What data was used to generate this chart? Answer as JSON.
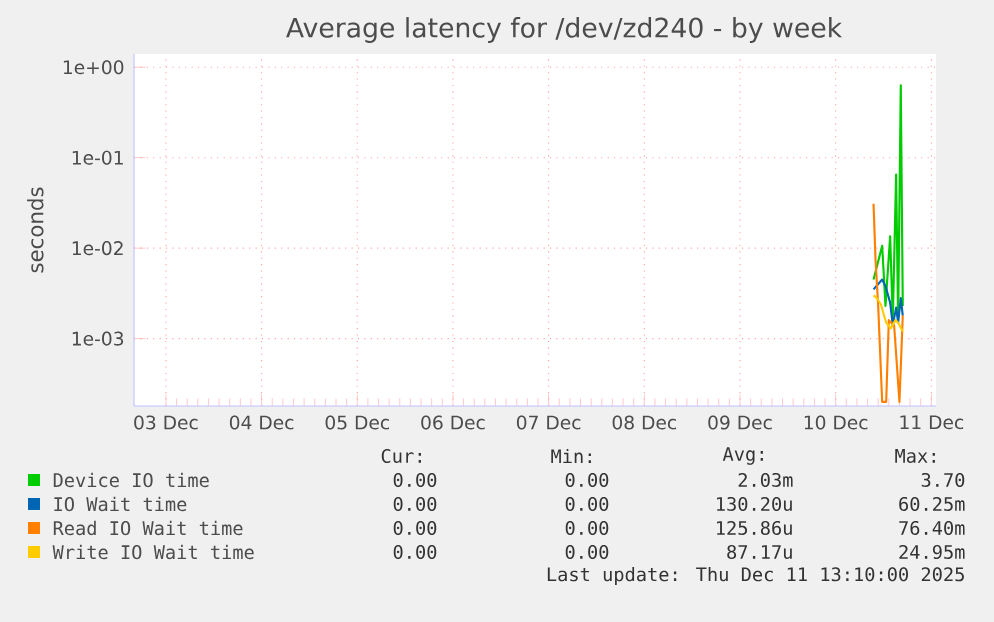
{
  "chart_data": {
    "type": "line",
    "title": "Average latency for /dev/zd240 - by week",
    "ylabel": "seconds",
    "log": "y",
    "grid": true,
    "legend": "bottom",
    "xlim": [
      "2025-12-03T04:00",
      "2025-12-11T13:10"
    ],
    "xticks": [
      {
        "value": "2025-12-03T12:00",
        "label": "03 Dec"
      },
      {
        "value": "2025-12-04T12:00",
        "label": "04 Dec"
      },
      {
        "value": "2025-12-05T12:00",
        "label": "05 Dec"
      },
      {
        "value": "2025-12-06T12:00",
        "label": "06 Dec"
      },
      {
        "value": "2025-12-07T12:00",
        "label": "07 Dec"
      },
      {
        "value": "2025-12-08T12:00",
        "label": "08 Dec"
      },
      {
        "value": "2025-12-09T12:00",
        "label": "09 Dec"
      },
      {
        "value": "2025-12-10T12:00",
        "label": "10 Dec"
      },
      {
        "value": "2025-12-11T12:00",
        "label": "11 Dec"
      }
    ],
    "ylim": [
      0.00018,
      1.4
    ],
    "yticks": [
      {
        "value": 0.001,
        "label": "1e-03"
      },
      {
        "value": 0.01,
        "label": "1e-02"
      },
      {
        "value": 0.1,
        "label": "1e-01"
      },
      {
        "value": 1,
        "label": "1e+00"
      }
    ],
    "series": [
      {
        "name": "Device IO time",
        "color": "#00cc00",
        "x": [
          "2025-12-10T21:30",
          "2025-12-10T23:40",
          "2025-12-11T00:30",
          "2025-12-11T01:40",
          "2025-12-11T02:20",
          "2025-12-11T03:10",
          "2025-12-11T03:40",
          "2025-12-11T04:20",
          "2025-12-11T04:50"
        ],
        "values": [
          0.0045,
          0.0106,
          0.0023,
          0.0135,
          0.0016,
          0.065,
          0.0016,
          0.63,
          0.0023
        ]
      },
      {
        "name": "IO Wait time",
        "color": "#0066b3",
        "x": [
          "2025-12-10T21:30",
          "2025-12-10T23:40",
          "2025-12-11T00:30",
          "2025-12-11T01:40",
          "2025-12-11T02:20",
          "2025-12-11T03:10",
          "2025-12-11T03:40",
          "2025-12-11T04:20",
          "2025-12-11T04:50"
        ],
        "values": [
          0.0035,
          0.0045,
          0.0038,
          0.0025,
          0.0014,
          0.0022,
          0.0015,
          0.0028,
          0.0018
        ]
      },
      {
        "name": "Read IO Wait time",
        "color": "#ff8000",
        "x": [
          "2025-12-10T21:30",
          "2025-12-10T22:00",
          "2025-12-10T22:40",
          "2025-12-10T23:40",
          "2025-12-11T00:40",
          "2025-12-11T01:20",
          "2025-12-11T02:40",
          "2025-12-11T04:00",
          "2025-12-11T04:50"
        ],
        "values": [
          0.031,
          0.0074,
          0.0023,
          0.0002,
          0.0002,
          0.0016,
          0.0014,
          0.0002,
          0.0018
        ]
      },
      {
        "name": "Write IO Wait time",
        "color": "#ffcc00",
        "x": [
          "2025-12-10T21:30",
          "2025-12-10T22:20",
          "2025-12-10T23:20",
          "2025-12-11T00:40",
          "2025-12-11T01:50",
          "2025-12-11T03:00",
          "2025-12-11T03:40",
          "2025-12-11T04:50"
        ],
        "values": [
          0.003,
          0.0028,
          0.0024,
          0.0015,
          0.0013,
          0.0016,
          0.0015,
          0.0012
        ]
      }
    ],
    "annotations": [
      "Cur:",
      "Min:",
      "Avg:",
      "Max:",
      "0.00",
      "0.00",
      "2.03m",
      "3.70",
      "0.00",
      "0.00",
      "130.20u",
      "60.25m",
      "0.00",
      "0.00",
      "125.86u",
      "76.40m",
      "0.00",
      "0.00",
      "87.17u",
      "24.95m",
      "Last update: Thu Dec 11 13:10:00 2025"
    ]
  }
}
